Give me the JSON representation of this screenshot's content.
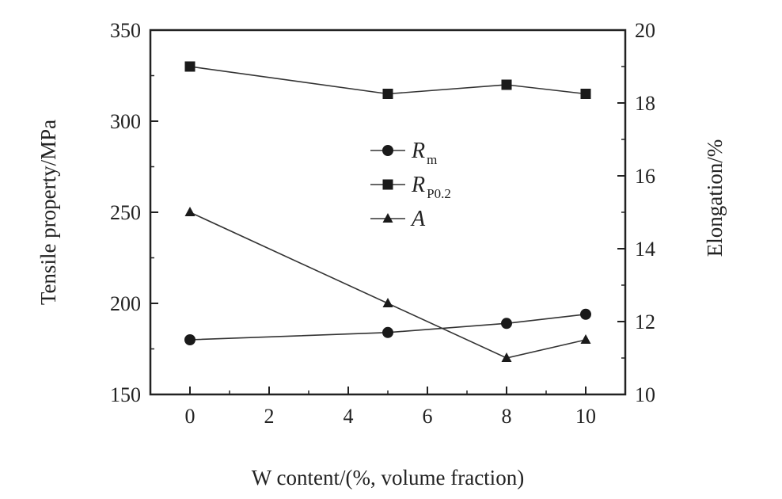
{
  "chart_data": {
    "type": "line",
    "xlabel": "W content/(%, volume fraction)",
    "ylabel_left": "Tensile property/MPa",
    "ylabel_right": "Elongation/%",
    "x_ticks": [
      0,
      2,
      4,
      6,
      8,
      10
    ],
    "y_left_ticks": [
      150,
      200,
      250,
      300,
      350
    ],
    "y_right_ticks": [
      10,
      12,
      14,
      16,
      18,
      20
    ],
    "xlim": [
      -1,
      11
    ],
    "ylim_left": [
      150,
      350
    ],
    "ylim_right": [
      10,
      20
    ],
    "series": [
      {
        "name": "R",
        "subscript": "m",
        "axis": "left",
        "marker": "circle",
        "x": [
          0,
          5,
          8,
          10
        ],
        "y": [
          180,
          184,
          189,
          194
        ]
      },
      {
        "name": "R",
        "subscript": "P0.2",
        "axis": "left",
        "marker": "square",
        "x": [
          0,
          5,
          8,
          10
        ],
        "y": [
          330,
          315,
          320,
          315
        ]
      },
      {
        "name": "A",
        "subscript": "",
        "axis": "right",
        "marker": "triangle",
        "x": [
          0,
          5,
          8,
          10
        ],
        "y": [
          15,
          12.5,
          11,
          11.5
        ]
      }
    ],
    "legend_position": "center",
    "grid": false
  }
}
